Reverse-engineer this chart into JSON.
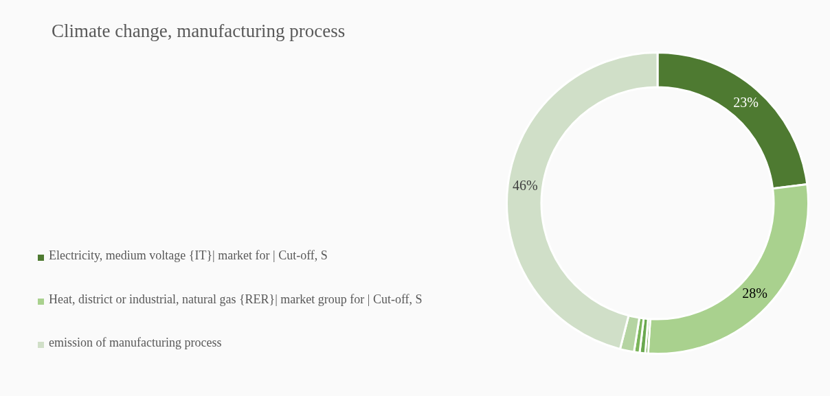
{
  "chart_data": {
    "type": "donut",
    "title": "Climate change, manufacturing process",
    "categories": [
      "Electricity, medium voltage {IT}| market for | Cut-off, S",
      "Heat, district or industrial, natural gas {RER}| market group for | Cut-off, S",
      null,
      null,
      null,
      null,
      "emission of manufacturing process"
    ],
    "values": [
      23,
      28,
      0.3,
      0.6,
      0.6,
      1.5,
      46
    ],
    "colors": [
      "#4e7a31",
      "#a9d18e",
      "#5f9e3a",
      "#6aa84f",
      "#7bb55a",
      "#b5d4a2",
      "#d0dfc8"
    ],
    "value_labels": [
      "23%",
      "28%",
      null,
      null,
      null,
      null,
      "46%"
    ],
    "legend": "left"
  }
}
